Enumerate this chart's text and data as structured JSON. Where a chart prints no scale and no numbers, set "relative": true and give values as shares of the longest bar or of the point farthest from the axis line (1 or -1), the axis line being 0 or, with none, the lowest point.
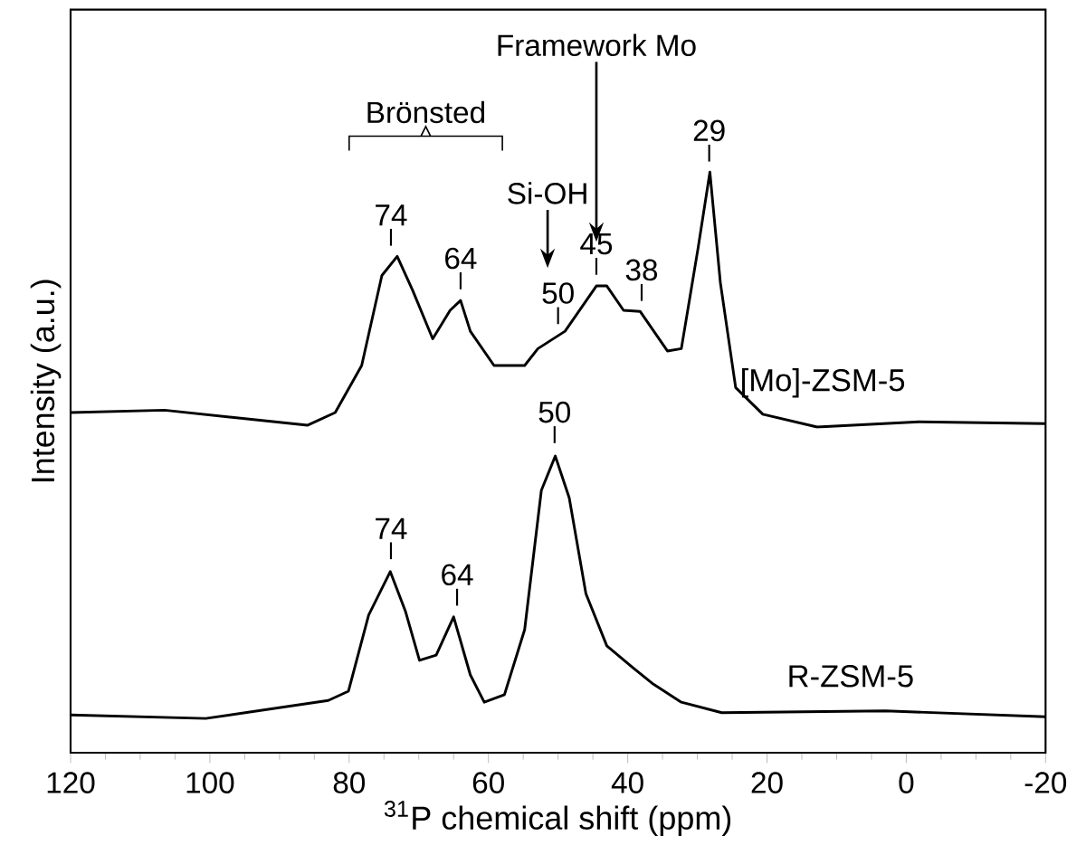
{
  "chart_data": {
    "type": "line",
    "relative": true,
    "xlabel": "$^{31}$P chemical shift (ppm)",
    "ylabel": "Intensity (a.u.)",
    "xlim": [
      120,
      -20
    ],
    "xticks": [
      120,
      100,
      80,
      60,
      40,
      20,
      0,
      -20
    ],
    "tick_labels": "x",
    "grid": false,
    "marker": "none",
    "line_style": "solid",
    "series": [
      {
        "name": "[Mo]-ZSM-5",
        "color": "#000000",
        "x": [
          120,
          106.5,
          86,
          82,
          78.2,
          75.3,
          73.1,
          70.9,
          68,
          65.5,
          64,
          62.6,
          59.2,
          54.8,
          52.9,
          49,
          44.5,
          43,
          40.6,
          38.2,
          34.3,
          32.3,
          29.9,
          28.2,
          26.7,
          24.5,
          20.6,
          12.8,
          -1.8,
          -20
        ],
        "values": [
          0.586,
          0.59,
          0.564,
          0.586,
          0.667,
          0.822,
          0.855,
          0.797,
          0.713,
          0.762,
          0.779,
          0.726,
          0.667,
          0.667,
          0.696,
          0.726,
          0.804,
          0.804,
          0.762,
          0.76,
          0.692,
          0.696,
          0.869,
          1.0,
          0.81,
          0.629,
          0.583,
          0.561,
          0.57,
          0.567
        ]
      },
      {
        "name": "R-ZSM-5",
        "color": "#000000",
        "x": [
          120,
          100.6,
          83,
          80.1,
          77.2,
          74.1,
          71.9,
          69.9,
          67.5,
          65,
          62.6,
          60.6,
          57.7,
          54.8,
          52.4,
          50.4,
          48.4,
          46,
          43,
          39.2,
          36.3,
          32.3,
          26.5,
          3,
          -20
        ],
        "values": [
          0.065,
          0.059,
          0.09,
          0.106,
          0.237,
          0.312,
          0.243,
          0.159,
          0.168,
          0.234,
          0.134,
          0.087,
          0.1,
          0.212,
          0.452,
          0.511,
          0.439,
          0.274,
          0.184,
          0.146,
          0.118,
          0.087,
          0.069,
          0.072,
          0.062
        ]
      }
    ],
    "annotations": [
      "Brönsted",
      "Framework Mo",
      "Si-OH",
      {
        "text": "74",
        "x": 74,
        "y": 0.865
      },
      {
        "text": "64",
        "x": 64,
        "y": 0.79
      },
      {
        "text": "50",
        "x": 50,
        "y": 0.73
      },
      {
        "text": "45",
        "x": 44.5,
        "y": 0.815
      },
      {
        "text": "38",
        "x": 38,
        "y": 0.77
      },
      {
        "text": "29",
        "x": 28.3,
        "y": 1.01
      },
      {
        "text": "74",
        "x": 74,
        "y": 0.325
      },
      {
        "text": "64",
        "x": 64.5,
        "y": 0.245
      },
      {
        "text": "50",
        "x": 50.5,
        "y": 0.525
      }
    ]
  }
}
